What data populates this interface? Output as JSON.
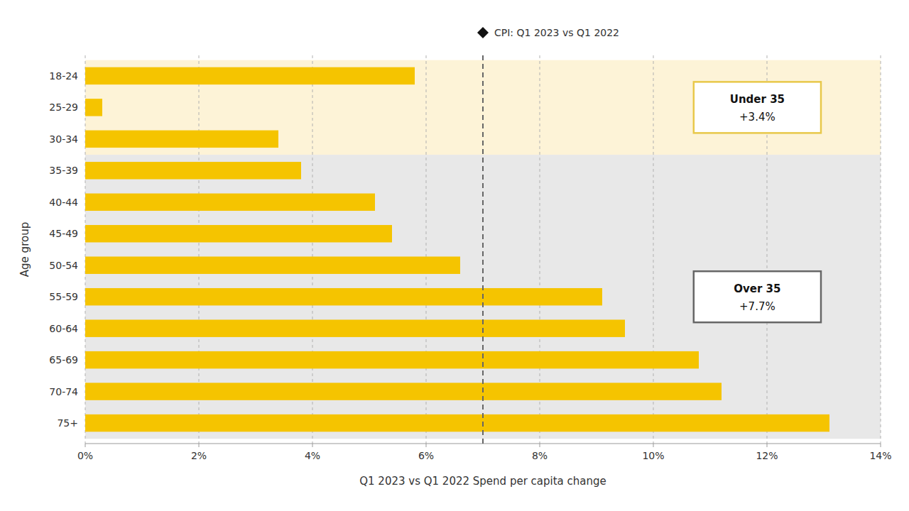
{
  "chart_data": {
    "type": "bar",
    "orientation": "horizontal",
    "categories": [
      "18-24",
      "25-29",
      "30-34",
      "35-39",
      "40-44",
      "45-49",
      "50-54",
      "55-59",
      "60-64",
      "65-69",
      "70-74",
      "75+"
    ],
    "values": [
      5.8,
      0.3,
      3.4,
      3.8,
      5.1,
      5.4,
      6.6,
      9.1,
      9.5,
      10.8,
      11.2,
      13.1
    ],
    "color": "#F5C400",
    "xlabel": "Q1 2023 vs Q1 2022 Spend per capita change",
    "ylabel": "Age group",
    "xlim": [
      0,
      14
    ],
    "xticks": [
      {
        "value": 0,
        "label": "0%"
      },
      {
        "value": 2,
        "label": "2%"
      },
      {
        "value": 4,
        "label": "4%"
      },
      {
        "value": 6,
        "label": "6%"
      },
      {
        "value": 8,
        "label": "8%"
      },
      {
        "value": 10,
        "label": "10%"
      },
      {
        "value": 12,
        "label": "12%"
      },
      {
        "value": 14,
        "label": "14%"
      }
    ],
    "grid": true,
    "annotations": [
      {
        "type": "vline",
        "x": 7.0,
        "label": "CPI: Q1 2023 vs Q1 2022",
        "color": "#666666",
        "line_style": "dashed"
      },
      {
        "type": "band",
        "from": "18-24",
        "to": "30-34",
        "label": "Under 35",
        "text": "+3.4%",
        "color": "#FDF3D7",
        "border_color": "#E8C84A"
      },
      {
        "type": "band",
        "from": "35-39",
        "to": "75+",
        "label": "Over 35",
        "text": "+7.7%",
        "color": "#E8E8E8",
        "border_color": "#666666"
      }
    ]
  }
}
